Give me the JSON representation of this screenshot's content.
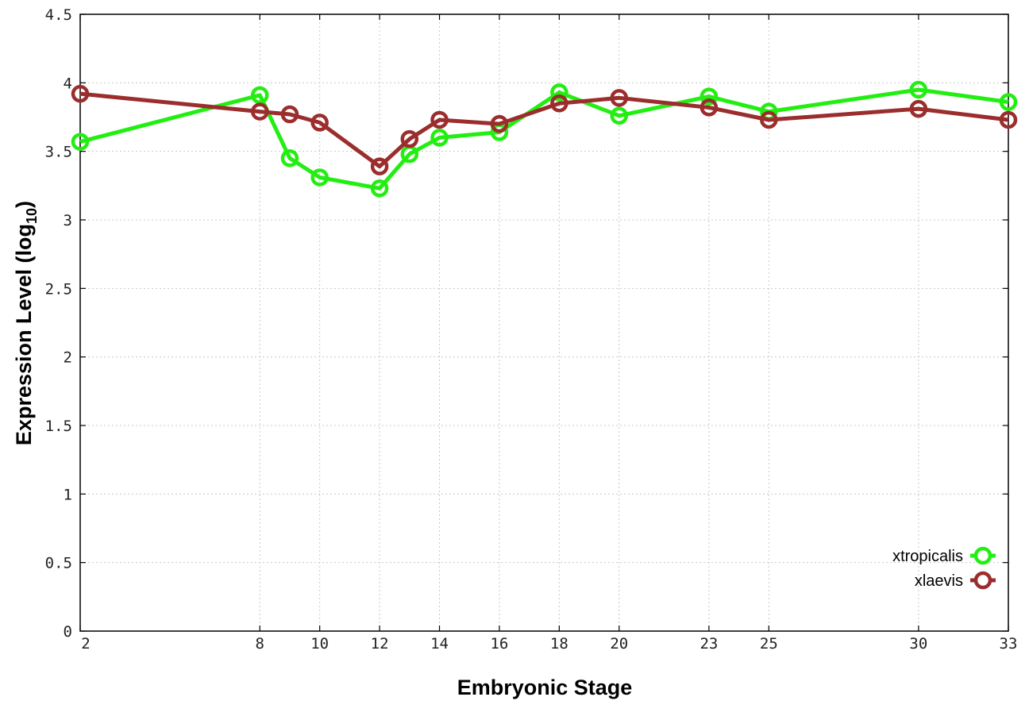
{
  "chart_data": {
    "type": "line",
    "xlabel": "Embryonic Stage",
    "ylabel_main": "Expression Level (log",
    "ylabel_sub": "10",
    "ylabel_close": ")",
    "ylim": [
      0,
      4.5
    ],
    "xlim": [
      2,
      33
    ],
    "x_ticks": [
      2,
      8,
      10,
      12,
      14,
      16,
      18,
      20,
      23,
      25,
      30,
      33
    ],
    "y_ticks": [
      0,
      0.5,
      1,
      1.5,
      2,
      2.5,
      3,
      3.5,
      4,
      4.5
    ],
    "y_tick_labels": [
      "0",
      "0.5",
      "1",
      "1.5",
      "2",
      "2.5",
      "3",
      "3.5",
      "4",
      "4.5"
    ],
    "grid": true,
    "legend_position": "bottom-right",
    "series": [
      {
        "name": "xtropicalis",
        "color": "#22ee11",
        "x": [
          2,
          8,
          9,
          10,
          12,
          13,
          14,
          16,
          18,
          20,
          23,
          25,
          30,
          33
        ],
        "y": [
          3.57,
          3.91,
          3.45,
          3.31,
          3.23,
          3.48,
          3.6,
          3.64,
          3.93,
          3.76,
          3.9,
          3.79,
          3.95,
          3.86
        ]
      },
      {
        "name": "xlaevis",
        "color": "#9b2d2d",
        "x": [
          2,
          8,
          9,
          10,
          12,
          13,
          14,
          16,
          18,
          20,
          23,
          25,
          30,
          33
        ],
        "y": [
          3.92,
          3.79,
          3.77,
          3.71,
          3.39,
          3.59,
          3.73,
          3.7,
          3.85,
          3.89,
          3.82,
          3.73,
          3.81,
          3.73
        ]
      }
    ]
  }
}
